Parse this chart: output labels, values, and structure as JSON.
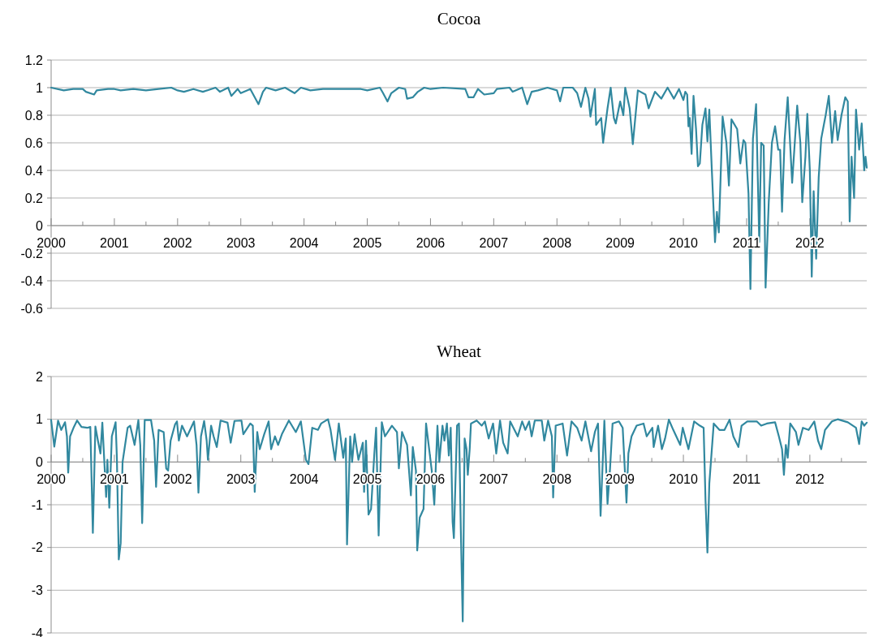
{
  "chart_data": [
    {
      "type": "line",
      "title": "Cocoa",
      "xlim": [
        2000,
        2012.9
      ],
      "xticks": [
        2000,
        {
          "value": 2000.5,
          "label": null
        },
        2001,
        {
          "value": 2001.5,
          "label": null
        },
        2002,
        {
          "value": 2002.5,
          "label": null
        },
        2003,
        {
          "value": 2003.5,
          "label": null
        },
        2004,
        {
          "value": 2004.5,
          "label": null
        },
        2005,
        {
          "value": 2005.5,
          "label": null
        },
        2006,
        {
          "value": 2006.5,
          "label": null
        },
        2007,
        {
          "value": 2007.5,
          "label": null
        },
        2008,
        {
          "value": 2008.5,
          "label": null
        },
        2009,
        {
          "value": 2009.5,
          "label": null
        },
        2010,
        {
          "value": 2010.5,
          "label": null
        },
        2011,
        {
          "value": 2011.5,
          "label": null
        },
        2012,
        {
          "value": 2012.5,
          "label": null
        }
      ],
      "ylim": [
        -0.6,
        1.2
      ],
      "yticks": [
        -0.6,
        -0.4,
        -0.2,
        0,
        0.2,
        0.4,
        0.6,
        0.8,
        1,
        1.2
      ],
      "grid": "y",
      "series": [
        {
          "color": "#31889f",
          "x": [
            2000,
            2000.2,
            2000.35,
            2000.5,
            2000.55,
            2000.68,
            2000.72,
            2000.9,
            2001,
            2001.1,
            2001.3,
            2001.5,
            2001.7,
            2001.9,
            2002,
            2002.1,
            2002.25,
            2002.4,
            2002.6,
            2002.67,
            2002.8,
            2002.85,
            2002.95,
            2003,
            2003.15,
            2003.28,
            2003.35,
            2003.4,
            2003.55,
            2003.7,
            2003.85,
            2003.95,
            2004.1,
            2004.3,
            2004.6,
            2004.9,
            2005,
            2005.2,
            2005.25,
            2005.32,
            2005.38,
            2005.5,
            2005.6,
            2005.63,
            2005.72,
            2005.8,
            2005.9,
            2006,
            2006.2,
            2006.55,
            2006.6,
            2006.68,
            2006.75,
            2006.85,
            2007,
            2007.05,
            2007.25,
            2007.3,
            2007.45,
            2007.53,
            2007.6,
            2007.7,
            2007.85,
            2008,
            2008.05,
            2008.1,
            2008.25,
            2008.32,
            2008.38,
            2008.45,
            2008.5,
            2008.53,
            2008.6,
            2008.62,
            2008.7,
            2008.73,
            2008.8,
            2008.85,
            2008.9,
            2008.93,
            2009,
            2009.05,
            2009.08,
            2009.15,
            2009.2,
            2009.28,
            2009.4,
            2009.45,
            2009.55,
            2009.65,
            2009.75,
            2009.85,
            2009.93,
            2010,
            2010.03,
            2010.06,
            2010.08,
            2010.1,
            2010.13,
            2010.16,
            2010.2,
            2010.23,
            2010.26,
            2010.3,
            2010.35,
            2010.38,
            2010.41,
            2010.45,
            2010.5,
            2010.53,
            2010.56,
            2010.62,
            2010.68,
            2010.72,
            2010.76,
            2010.85,
            2010.9,
            2010.95,
            2010.98,
            2011.03,
            2011.06,
            2011.1,
            2011.15,
            2011.2,
            2011.23,
            2011.27,
            2011.3,
            2011.35,
            2011.4,
            2011.45,
            2011.5,
            2011.53,
            2011.56,
            2011.6,
            2011.65,
            2011.72,
            2011.8,
            2011.85,
            2011.88,
            2011.93,
            2011.96,
            2012,
            2012.03,
            2012.06,
            2012.1,
            2012.14,
            2012.18,
            2012.25,
            2012.3,
            2012.35,
            2012.4,
            2012.44,
            2012.5,
            2012.56,
            2012.6,
            2012.63,
            2012.66,
            2012.7,
            2012.73,
            2012.78,
            2012.82,
            2012.86,
            2012.88,
            2012.9
          ],
          "values": [
            1,
            0.98,
            0.99,
            0.99,
            0.97,
            0.95,
            0.98,
            0.99,
            0.99,
            0.98,
            0.99,
            0.98,
            0.99,
            1,
            0.98,
            0.97,
            0.99,
            0.97,
            1,
            0.97,
            1,
            0.94,
            0.99,
            0.96,
            0.99,
            0.88,
            0.97,
            1,
            0.98,
            1,
            0.96,
            1,
            0.98,
            0.99,
            0.99,
            0.99,
            0.98,
            1,
            0.96,
            0.9,
            0.96,
            1,
            0.99,
            0.92,
            0.93,
            0.97,
            1,
            0.99,
            1,
            0.99,
            0.93,
            0.93,
            0.99,
            0.95,
            0.96,
            0.99,
            1,
            0.97,
            1,
            0.88,
            0.97,
            0.98,
            1,
            0.98,
            0.9,
            1,
            1,
            0.96,
            0.86,
            1,
            0.92,
            0.79,
            0.99,
            0.73,
            0.78,
            0.6,
            0.85,
            1,
            0.78,
            0.74,
            0.9,
            0.8,
            1,
            0.85,
            0.59,
            0.98,
            0.95,
            0.85,
            0.97,
            0.92,
            1,
            0.92,
            0.99,
            0.91,
            0.97,
            0.95,
            0.72,
            0.78,
            0.52,
            0.94,
            0.7,
            0.43,
            0.45,
            0.73,
            0.85,
            0.61,
            0.84,
            0.4,
            -0.12,
            0.1,
            -0.05,
            0.79,
            0.6,
            0.29,
            0.77,
            0.7,
            0.45,
            0.62,
            0.6,
            0.23,
            -0.46,
            0.63,
            0.88,
            -0.12,
            0.6,
            0.58,
            -0.45,
            0.17,
            0.6,
            0.72,
            0.55,
            0.55,
            0.1,
            0.62,
            0.93,
            0.31,
            0.87,
            0.6,
            0.17,
            0.5,
            0.81,
            0.4,
            -0.37,
            0.25,
            -0.24,
            0.35,
            0.63,
            0.8,
            0.94,
            0.6,
            0.83,
            0.62,
            0.8,
            0.93,
            0.9,
            0.03,
            0.5,
            0.2,
            0.84,
            0.55,
            0.74,
            0.4,
            0.5,
            0.42
          ]
        }
      ]
    },
    {
      "type": "line",
      "title": "Wheat",
      "xlim": [
        2000,
        2012.9
      ],
      "xticks": [
        2000,
        {
          "value": 2000.5,
          "label": null
        },
        2001,
        {
          "value": 2001.5,
          "label": null
        },
        2002,
        {
          "value": 2002.5,
          "label": null
        },
        2003,
        {
          "value": 2003.5,
          "label": null
        },
        2004,
        {
          "value": 2004.5,
          "label": null
        },
        2005,
        {
          "value": 2005.5,
          "label": null
        },
        2006,
        {
          "value": 2006.5,
          "label": null
        },
        2007,
        {
          "value": 2007.5,
          "label": null
        },
        2008,
        {
          "value": 2008.5,
          "label": null
        },
        2009,
        {
          "value": 2009.5,
          "label": null
        },
        2010,
        {
          "value": 2010.5,
          "label": null
        },
        2011,
        {
          "value": 2011.5,
          "label": null
        },
        2012,
        {
          "value": 2012.5,
          "label": null
        }
      ],
      "ylim": [
        -4,
        2
      ],
      "yticks": [
        -4,
        -3,
        -2,
        -1,
        0,
        1,
        2
      ],
      "grid": "y",
      "series": [
        {
          "color": "#31889f",
          "x": [
            2000,
            2000.05,
            2000.11,
            2000.16,
            2000.22,
            2000.25,
            2000.27,
            2000.3,
            2000.36,
            2000.41,
            2000.48,
            2000.57,
            2000.62,
            2000.66,
            2000.7,
            2000.74,
            2000.78,
            2000.81,
            2000.84,
            2000.87,
            2000.89,
            2000.92,
            2000.96,
            2001.02,
            2001.04,
            2001.07,
            2001.1,
            2001.13,
            2001.16,
            2001.21,
            2001.25,
            2001.32,
            2001.38,
            2001.41,
            2001.44,
            2001.48,
            2001.58,
            2001.63,
            2001.66,
            2001.7,
            2001.78,
            2001.82,
            2001.85,
            2001.89,
            2001.96,
            2001.99,
            2002.02,
            2002.07,
            2002.15,
            2002.26,
            2002.3,
            2002.33,
            2002.37,
            2002.42,
            2002.46,
            2002.48,
            2002.53,
            2002.57,
            2002.62,
            2002.68,
            2002.79,
            2002.84,
            2002.9,
            2003.01,
            2003.04,
            2003.15,
            2003.19,
            2003.22,
            2003.26,
            2003.3,
            2003.37,
            2003.44,
            2003.48,
            2003.54,
            2003.59,
            2003.65,
            2003.76,
            2003.87,
            2003.95,
            2004.03,
            2004.07,
            2004.13,
            2004.22,
            2004.27,
            2004.38,
            2004.42,
            2004.49,
            2004.55,
            2004.62,
            2004.66,
            2004.68,
            2004.73,
            2004.76,
            2004.8,
            2004.86,
            2004.93,
            2004.95,
            2004.98,
            2005.02,
            2005.06,
            2005.11,
            2005.14,
            2005.18,
            2005.23,
            2005.28,
            2005.39,
            2005.47,
            2005.5,
            2005.55,
            2005.63,
            2005.69,
            2005.72,
            2005.77,
            2005.79,
            2005.83,
            2005.89,
            2005.93,
            2006.02,
            2006.06,
            2006.11,
            2006.14,
            2006.19,
            2006.22,
            2006.26,
            2006.29,
            2006.32,
            2006.35,
            2006.37,
            2006.42,
            2006.45,
            2006.48,
            2006.51,
            2006.54,
            2006.57,
            2006.59,
            2006.62,
            2006.64,
            2006.73,
            2006.81,
            2006.86,
            2006.92,
            2006.99,
            2007.04,
            2007.1,
            2007.15,
            2007.22,
            2007.26,
            2007.38,
            2007.45,
            2007.5,
            2007.56,
            2007.6,
            2007.65,
            2007.76,
            2007.8,
            2007.86,
            2007.92,
            2007.94,
            2007.98,
            2008.09,
            2008.16,
            2008.23,
            2008.32,
            2008.39,
            2008.45,
            2008.54,
            2008.6,
            2008.65,
            2008.69,
            2008.75,
            2008.8,
            2008.84,
            2008.88,
            2008.98,
            2009.04,
            2009.1,
            2009.13,
            2009.18,
            2009.26,
            2009.37,
            2009.42,
            2009.51,
            2009.53,
            2009.6,
            2009.66,
            2009.71,
            2009.77,
            2009.84,
            2009.95,
            2009.99,
            2010.08,
            2010.17,
            2010.26,
            2010.32,
            2010.35,
            2010.38,
            2010.41,
            2010.48,
            2010.57,
            2010.65,
            2010.73,
            2010.79,
            2010.87,
            2010.92,
            2011.01,
            2011.16,
            2011.23,
            2011.32,
            2011.45,
            2011.51,
            2011.56,
            2011.59,
            2011.62,
            2011.65,
            2011.69,
            2011.78,
            2011.82,
            2011.89,
            2011.98,
            2012.07,
            2012.13,
            2012.18,
            2012.24,
            2012.35,
            2012.44,
            2012.6,
            2012.73,
            2012.78,
            2012.82,
            2012.86,
            2012.9
          ],
          "values": [
            0.98,
            0.36,
            0.97,
            0.75,
            0.93,
            0.6,
            -0.25,
            0.6,
            0.82,
            0.97,
            0.82,
            0.8,
            0.82,
            -1.66,
            0.83,
            0.5,
            0.2,
            0.92,
            0.05,
            -0.82,
            0.05,
            -1.07,
            0.6,
            0.93,
            0.1,
            -2.28,
            -1.9,
            0,
            0.3,
            0.8,
            0.85,
            0.4,
            0.98,
            0.4,
            -1.43,
            0.98,
            0.98,
            0.5,
            -0.58,
            0.75,
            0.7,
            -0.15,
            -0.2,
            0.5,
            0.88,
            0.95,
            0.5,
            0.85,
            0.6,
            0.95,
            0.4,
            -0.72,
            0.6,
            0.96,
            0.5,
            0.05,
            0.85,
            0.6,
            0.35,
            0.97,
            0.92,
            0.45,
            0.96,
            0.97,
            0.65,
            0.9,
            0.85,
            -0.7,
            0.7,
            0.3,
            0.65,
            0.95,
            0.3,
            0.6,
            0.4,
            0.65,
            0.97,
            0.7,
            0.95,
            0.05,
            -0.05,
            0.8,
            0.75,
            0.9,
            1,
            0.75,
            0.05,
            0.9,
            0.1,
            0.55,
            -1.93,
            0.6,
            0,
            0.65,
            0.05,
            0.45,
            -0.7,
            0.5,
            -1.23,
            -1.1,
            0.15,
            0.8,
            -1.72,
            0.93,
            0.6,
            0.85,
            0.7,
            -0.15,
            0.7,
            0.4,
            -0.78,
            0.35,
            -0.2,
            -2.07,
            -1.3,
            -1.1,
            0.9,
            -0.2,
            -1,
            0.85,
            0,
            0.85,
            0.5,
            0.9,
            0.15,
            0.8,
            -1.4,
            -1.78,
            0.85,
            0.9,
            -1.6,
            -3.73,
            0.55,
            0.3,
            -0.3,
            0.3,
            0.9,
            0.97,
            0.85,
            0.95,
            0.55,
            0.9,
            0.2,
            0.97,
            0.45,
            0.2,
            0.95,
            0.6,
            0.95,
            0.75,
            0.95,
            0.6,
            0.97,
            0.97,
            0.5,
            0.97,
            0.6,
            -0.83,
            0.85,
            0.9,
            0.15,
            0.95,
            0.8,
            0.5,
            0.95,
            0.25,
            0.7,
            0.9,
            -1.26,
            0.97,
            -0.98,
            -0.15,
            0.9,
            0.95,
            0.8,
            -0.95,
            0.2,
            0.6,
            0.85,
            0.9,
            0.6,
            0.8,
            0.35,
            0.85,
            0.3,
            0.55,
            0.99,
            0.75,
            0.4,
            0.8,
            0.3,
            0.95,
            0.85,
            0.8,
            -0.9,
            -2.12,
            -0.5,
            0.9,
            0.75,
            0.75,
            0.99,
            0.6,
            0.35,
            0.85,
            0.95,
            0.95,
            0.85,
            0.9,
            0.93,
            0.6,
            0.3,
            -0.3,
            0.4,
            0.1,
            0.9,
            0.7,
            0.4,
            0.8,
            0.75,
            0.95,
            0.5,
            0.3,
            0.75,
            0.95,
            1,
            0.93,
            0.8,
            0.42,
            0.95,
            0.85,
            0.92
          ]
        }
      ]
    }
  ]
}
